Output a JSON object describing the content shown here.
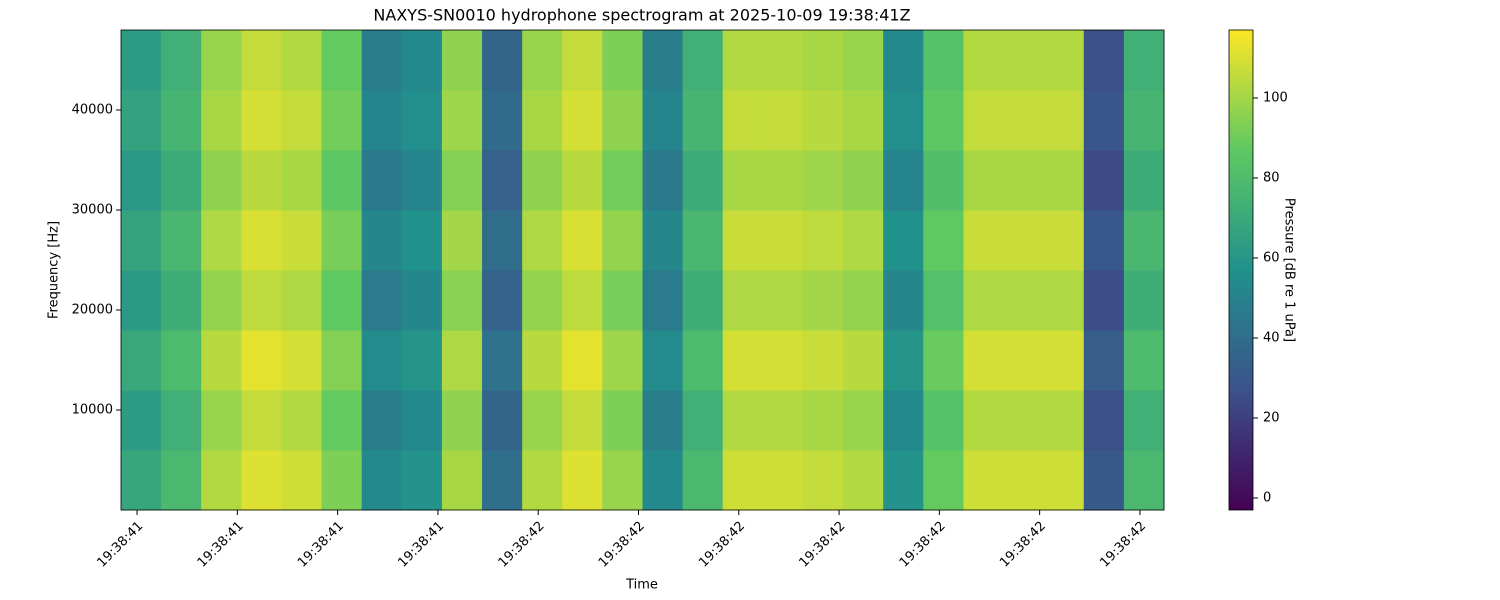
{
  "chart_data": {
    "type": "heatmap",
    "title": "NAXYS-SN0010 hydrophone spectrogram at 2025-10-09 19:38:41Z",
    "x_label": "Time",
    "y_label": "Frequency [Hz]",
    "colorbar_label": "Pressure [dB re 1 uPa]",
    "colormap": "viridis",
    "xlim": [
      -0.016,
      1.024
    ],
    "xticks": [
      {
        "value": 0,
        "label": "19:38:41"
      },
      {
        "value": 0.1,
        "label": "19:38:41"
      },
      {
        "value": 0.2,
        "label": "19:38:41"
      },
      {
        "value": 0.3,
        "label": "19:38:41"
      },
      {
        "value": 0.4,
        "label": "19:38:42"
      },
      {
        "value": 0.5,
        "label": "19:38:42"
      },
      {
        "value": 0.6,
        "label": "19:38:42"
      },
      {
        "value": 0.7,
        "label": "19:38:42"
      },
      {
        "value": 0.8,
        "label": "19:38:42"
      },
      {
        "value": 0.9,
        "label": "19:38:42"
      },
      {
        "value": 1.0,
        "label": "19:38:42"
      }
    ],
    "ylim": [
      0,
      48000
    ],
    "yticks": [
      10000,
      20000,
      30000,
      40000
    ],
    "clim": [
      -3,
      117
    ],
    "cticks": [
      0,
      20,
      40,
      60,
      80,
      100
    ],
    "xbins": [
      -0.016,
      0.024,
      0.064,
      0.104,
      0.144,
      0.184,
      0.224,
      0.264,
      0.304,
      0.344,
      0.384,
      0.424,
      0.464,
      0.504,
      0.544,
      0.584,
      0.624,
      0.664,
      0.704,
      0.744,
      0.784,
      0.824,
      0.864,
      0.904,
      0.944,
      0.984,
      1.024
    ],
    "ybins": [
      0,
      6000,
      12000,
      18000,
      24000,
      30000,
      36000,
      42000,
      48000
    ],
    "values": [
      [
        68,
        78,
        103,
        111,
        108,
        93,
        53,
        58,
        101,
        41,
        103,
        111,
        98,
        53,
        78,
        108,
        108,
        106,
        103,
        58,
        88,
        108,
        108,
        108,
        31,
        78
      ],
      [
        63,
        73,
        98,
        106,
        103,
        88,
        48,
        53,
        96,
        36,
        98,
        106,
        93,
        48,
        73,
        103,
        103,
        101,
        98,
        53,
        83,
        103,
        103,
        103,
        26,
        73
      ],
      [
        69,
        79,
        104,
        112,
        109,
        94,
        54,
        59,
        102,
        42,
        104,
        112,
        99,
        54,
        79,
        109,
        109,
        107,
        104,
        59,
        89,
        109,
        109,
        109,
        32,
        79
      ],
      [
        62,
        72,
        97,
        105,
        102,
        87,
        47,
        52,
        95,
        35,
        97,
        105,
        92,
        47,
        72,
        102,
        102,
        100,
        97,
        52,
        82,
        102,
        102,
        102,
        25,
        72
      ],
      [
        67,
        77,
        102,
        110,
        107,
        92,
        52,
        57,
        100,
        40,
        102,
        110,
        97,
        52,
        77,
        107,
        107,
        105,
        102,
        57,
        87,
        107,
        107,
        107,
        30,
        77
      ],
      [
        61,
        71,
        96,
        104,
        101,
        86,
        46,
        51,
        94,
        34,
        96,
        104,
        91,
        46,
        71,
        101,
        101,
        99,
        96,
        51,
        81,
        101,
        101,
        101,
        24,
        71
      ],
      [
        66,
        76,
        101,
        109,
        106,
        91,
        51,
        56,
        99,
        39,
        101,
        109,
        96,
        51,
        76,
        106,
        106,
        104,
        101,
        56,
        86,
        106,
        106,
        106,
        29,
        76
      ],
      [
        63,
        73,
        98,
        106,
        103,
        88,
        48,
        53,
        96,
        36,
        98,
        106,
        93,
        48,
        73,
        103,
        103,
        101,
        98,
        53,
        83,
        103,
        103,
        103,
        26,
        73
      ]
    ]
  }
}
